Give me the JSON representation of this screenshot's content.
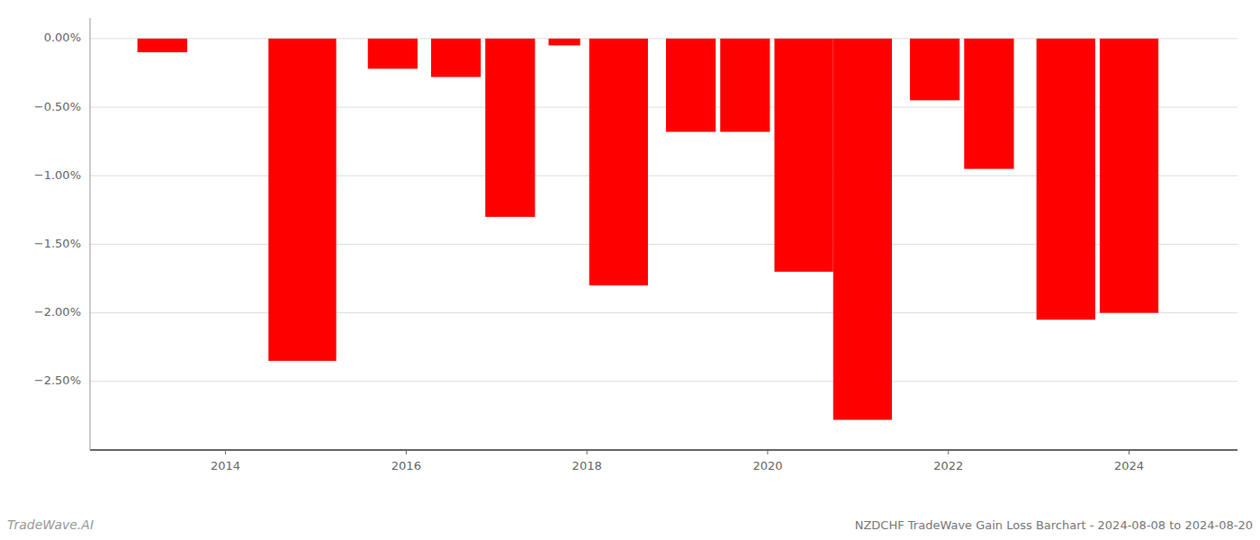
{
  "chart_data": {
    "type": "bar",
    "title": "NZDCHF TradeWave Gain Loss Barchart - 2024-08-08 to 2024-08-20",
    "annotations": [
      "TradeWave.AI"
    ],
    "x": [
      2013.3,
      2014.85,
      2015.85,
      2016.55,
      2017.15,
      2017.75,
      2018.35,
      2019.15,
      2019.75,
      2020.4,
      2021.05,
      2021.85,
      2022.45,
      2023.3,
      2024.0
    ],
    "widths": [
      0.55,
      0.75,
      0.55,
      0.55,
      0.55,
      0.35,
      0.65,
      0.55,
      0.55,
      0.65,
      0.65,
      0.55,
      0.55,
      0.65,
      0.65
    ],
    "values": [
      -0.1,
      -2.35,
      -0.22,
      -0.28,
      -1.3,
      -0.05,
      -1.8,
      -0.68,
      -0.68,
      -1.7,
      -2.78,
      -0.45,
      -0.95,
      -2.05,
      -2.0
    ],
    "color": "#ff0000",
    "xlim": [
      2012.5,
      2025.2
    ],
    "xticks": [
      2014,
      2016,
      2018,
      2020,
      2022,
      2024
    ],
    "ylim": [
      -3.0,
      0.15
    ],
    "yticks": [
      {
        "value": 0.0,
        "label": "0.00%"
      },
      {
        "value": -0.5,
        "label": "−0.50%"
      },
      {
        "value": -1.0,
        "label": "−1.00%"
      },
      {
        "value": -1.5,
        "label": "−1.50%"
      },
      {
        "value": -2.0,
        "label": "−2.00%"
      },
      {
        "value": -2.5,
        "label": "−2.50%"
      }
    ],
    "grid": true
  }
}
